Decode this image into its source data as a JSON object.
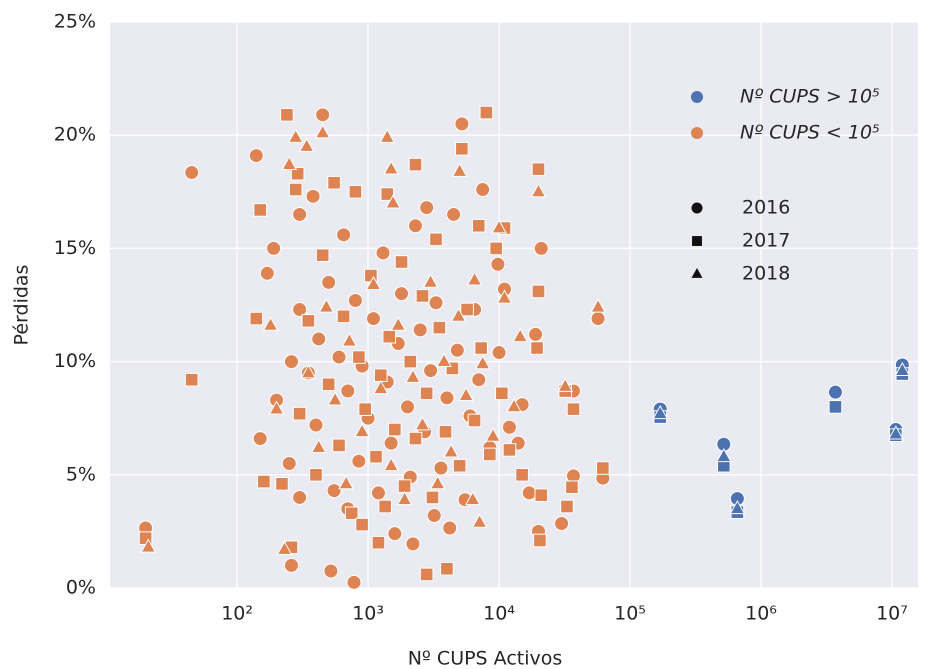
{
  "chart_data": {
    "type": "scatter",
    "x_label": "Nº CUPS Activos",
    "y_label": "Pérdidas",
    "xscale": "log",
    "xlim": [
      10.7,
      15800000
    ],
    "ylim": [
      0,
      25
    ],
    "xticks": [
      {
        "value": 100,
        "label": "10²"
      },
      {
        "value": 1000,
        "label": "10³"
      },
      {
        "value": 10000,
        "label": "10⁴"
      },
      {
        "value": 100000,
        "label": "10⁵"
      },
      {
        "value": 1000000,
        "label": "10⁶"
      },
      {
        "value": 10000000,
        "label": "10⁷"
      }
    ],
    "yticks": [
      {
        "value": 0,
        "label": "0%"
      },
      {
        "value": 5,
        "label": "5%"
      },
      {
        "value": 10,
        "label": "10%"
      },
      {
        "value": 15,
        "label": "15%"
      },
      {
        "value": 20,
        "label": "20%"
      },
      {
        "value": 25,
        "label": "25%"
      }
    ],
    "grid": true,
    "markers": [
      {
        "label": "2016",
        "shape": "circle"
      },
      {
        "label": "2017",
        "shape": "square"
      },
      {
        "label": "2018",
        "shape": "triangle"
      }
    ],
    "series": [
      {
        "name": "Nº CUPS > 10⁵",
        "color": "#4c72b0",
        "groups": [
          {
            "x": [
              170000,
              520000,
              660000,
              3700000,
              10700000,
              12000000
            ],
            "y": [
              7.9,
              6.35,
              3.95,
              8.65,
              7.0,
              9.85
            ]
          },
          {
            "x": [
              170000,
              520000,
              660000,
              3700000,
              10700000,
              12000000
            ],
            "y": [
              7.55,
              5.4,
              3.35,
              8.0,
              6.75,
              9.45
            ]
          },
          {
            "x": [
              170000,
              520000,
              660000,
              10700000,
              12000000
            ],
            "y": [
              7.7,
              5.8,
              3.5,
              6.8,
              9.6
            ]
          }
        ]
      },
      {
        "name": "Nº CUPS < 10⁵",
        "color": "#dd8452",
        "groups": [
          {
            "x": [
              20,
              45,
              140,
              170,
              190,
              260,
              300,
              450,
              520,
              780,
              2800,
              5200,
              4500,
              7500,
              9800,
              11000,
              19000,
              21000,
              20000,
              30000,
              37000,
              37000,
              62000,
              57000,
              2200,
              3200,
              4200,
              150,
              200,
              250,
              300,
              350,
              400,
              420,
              500,
              550,
              600,
              650,
              700,
              800,
              850,
              900,
              1000,
              1100,
              1200,
              1300,
              1400,
              1500,
              1700,
              1800,
              2000,
              2100,
              2300,
              2500,
              2700,
              3000,
              3300,
              3600,
              4000,
              4800,
              5500,
              6000,
              6500,
              7000,
              8500,
              10000,
              12000,
              15000,
              14000,
              17000,
              300,
              260,
              700,
              1600,
              380
            ],
            "y": [
              2.65,
              18.35,
              19.1,
              13.9,
              15.0,
              1.0,
              16.5,
              20.9,
              0.75,
              0.25,
              16.8,
              20.5,
              16.5,
              17.6,
              14.3,
              13.2,
              11.2,
              15.0,
              2.5,
              2.85,
              4.95,
              8.7,
              4.85,
              11.9,
              1.95,
              3.2,
              2.65,
              6.6,
              8.3,
              5.5,
              12.3,
              9.5,
              7.2,
              11.0,
              13.5,
              4.3,
              10.2,
              15.6,
              8.7,
              12.7,
              5.6,
              9.8,
              7.5,
              11.9,
              4.2,
              14.8,
              9.1,
              6.4,
              10.8,
              13.0,
              8.0,
              4.9,
              16.0,
              11.4,
              6.9,
              9.6,
              12.6,
              5.3,
              8.4,
              10.5,
              3.9,
              7.6,
              12.3,
              9.2,
              6.2,
              10.4,
              7.1,
              8.1,
              6.4,
              4.2,
              4.0,
              10.0,
              3.5,
              2.4,
              17.3
            ]
          },
          {
            "x": [
              20,
              45,
              140,
              150,
              160,
              240,
              260,
              280,
              290,
              550,
              800,
              1400,
              2300,
              2800,
              4000,
              5200,
              8000,
              20000,
              19500,
              20000,
              21000,
              20500,
              32000,
              33000,
              36000,
              37000,
              62000,
              15000,
              7000,
              9500,
              3300,
              220,
              300,
              350,
              400,
              450,
              500,
              600,
              650,
              750,
              850,
              950,
              1050,
              1150,
              1250,
              1350,
              1450,
              1600,
              1800,
              1900,
              2100,
              2300,
              2600,
              2800,
              3100,
              3500,
              3900,
              4400,
              5000,
              5700,
              6500,
              7300,
              8500,
              10500,
              12000,
              11000,
              1200,
              900
            ],
            "y": [
              2.2,
              9.2,
              11.9,
              16.7,
              4.7,
              20.9,
              1.8,
              17.6,
              18.3,
              17.9,
              17.5,
              17.4,
              18.7,
              0.6,
              0.85,
              19.4,
              21.0,
              18.5,
              10.6,
              13.1,
              4.1,
              2.1,
              8.7,
              3.6,
              4.45,
              7.9,
              5.3,
              5.0,
              16.0,
              15.0,
              15.4,
              4.6,
              7.7,
              11.8,
              5.0,
              14.7,
              9.0,
              6.3,
              12.0,
              3.3,
              10.2,
              7.9,
              13.8,
              5.8,
              9.4,
              3.6,
              11.1,
              7.0,
              14.4,
              4.5,
              10.0,
              6.6,
              12.9,
              8.6,
              4.0,
              11.5,
              6.9,
              9.7,
              5.4,
              12.3,
              7.4,
              10.6,
              5.9,
              8.6,
              6.1,
              15.9,
              2.0,
              2.8
            ]
          },
          {
            "x": [
              21,
              230,
              250,
              280,
              340,
              450,
              1400,
              1500,
              1550,
              5000,
              10000,
              20000,
              57000,
              32000,
              200,
              180,
              350,
              420,
              480,
              560,
              680,
              720,
              900,
              1100,
              1250,
              1500,
              1700,
              1900,
              2200,
              2600,
              3000,
              3400,
              3800,
              4300,
              4900,
              5600,
              6300,
              7500,
              9000,
              11000,
              13000,
              6500,
              7100,
              14500
            ],
            "y": [
              1.8,
              1.7,
              18.7,
              19.9,
              19.5,
              20.1,
              19.9,
              18.5,
              17.0,
              18.4,
              15.9,
              17.5,
              12.4,
              8.9,
              7.9,
              11.6,
              9.5,
              6.2,
              12.4,
              8.3,
              4.6,
              10.9,
              6.9,
              13.4,
              8.8,
              5.4,
              11.6,
              3.9,
              9.3,
              7.2,
              13.5,
              4.6,
              10.0,
              6.0,
              12.0,
              8.5,
              3.9,
              9.9,
              6.7,
              12.8,
              8.0,
              13.6,
              2.9,
              11.1
            ]
          }
        ]
      }
    ]
  }
}
